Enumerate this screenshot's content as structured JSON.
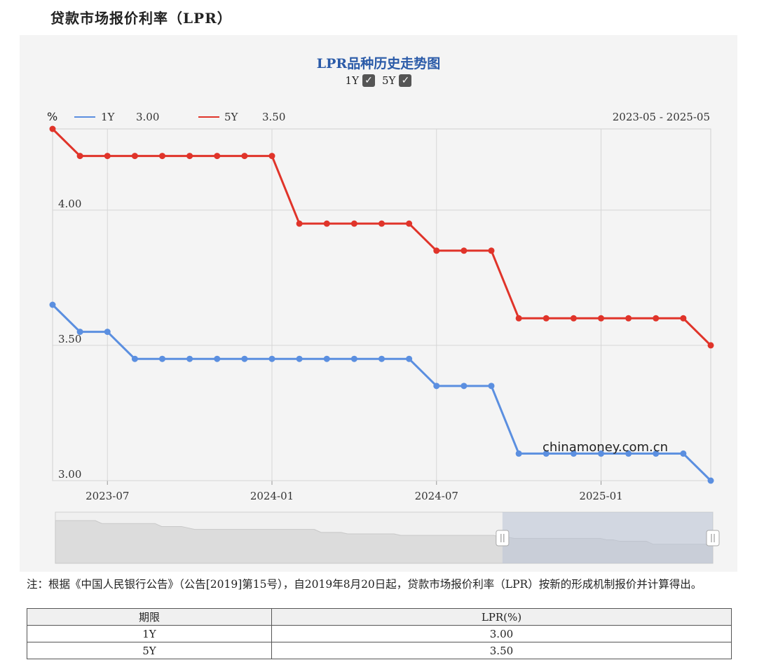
{
  "page": {
    "title": "贷款市场报价利率（LPR）",
    "watermark": "chinamoney.com.cn"
  },
  "chart_data": {
    "type": "line",
    "title": "LPR品种历史走势图",
    "ylabel": "%",
    "date_range": "2023-05 - 2025-05",
    "toggles": [
      {
        "label": "1Y",
        "checked": true
      },
      {
        "label": "5Y",
        "checked": true
      }
    ],
    "legend": [
      {
        "name": "1Y",
        "value": "3.00",
        "color": "#5b8fe0"
      },
      {
        "name": "5Y",
        "value": "3.50",
        "color": "#e0342a"
      }
    ],
    "ylim": [
      3.0,
      4.3
    ],
    "yticks": [
      3.0,
      3.5,
      4.0
    ],
    "ytick_labels": [
      "3.00",
      "3.50",
      "4.00"
    ],
    "xticks": [
      "2023-07",
      "2024-01",
      "2024-07",
      "2025-01"
    ],
    "x": [
      "2023-05",
      "2023-06",
      "2023-07",
      "2023-08",
      "2023-09",
      "2023-10",
      "2023-11",
      "2023-12",
      "2024-01",
      "2024-02",
      "2024-03",
      "2024-04",
      "2024-05",
      "2024-06",
      "2024-07",
      "2024-08",
      "2024-09",
      "2024-10",
      "2024-11",
      "2024-12",
      "2025-01",
      "2025-02",
      "2025-03",
      "2025-04",
      "2025-05"
    ],
    "series": [
      {
        "name": "1Y",
        "color": "#5b8fe0",
        "values": [
          3.65,
          3.55,
          3.55,
          3.45,
          3.45,
          3.45,
          3.45,
          3.45,
          3.45,
          3.45,
          3.45,
          3.45,
          3.45,
          3.45,
          3.35,
          3.35,
          3.35,
          3.1,
          3.1,
          3.1,
          3.1,
          3.1,
          3.1,
          3.1,
          3.0
        ]
      },
      {
        "name": "5Y",
        "color": "#e0342a",
        "values": [
          4.3,
          4.2,
          4.2,
          4.2,
          4.2,
          4.2,
          4.2,
          4.2,
          4.2,
          3.95,
          3.95,
          3.95,
          3.95,
          3.95,
          3.85,
          3.85,
          3.85,
          3.6,
          3.6,
          3.6,
          3.6,
          3.6,
          3.6,
          3.6,
          3.5
        ]
      }
    ],
    "grid": true,
    "legend_position": "top-left",
    "zoom_window": {
      "start": "2023-05",
      "end": "2025-05",
      "selected_start_fraction": 0.68,
      "selected_end_fraction": 1.0
    }
  },
  "note": "注：根据《中国人民银行公告》（公告[2019]第15号），自2019年8月20日起，贷款市场报价利率（LPR）按新的形成机制报价并计算得出。",
  "table": {
    "headers": [
      "期限",
      "LPR(%)"
    ],
    "rows": [
      [
        "1Y",
        "3.00"
      ],
      [
        "5Y",
        "3.50"
      ]
    ]
  }
}
